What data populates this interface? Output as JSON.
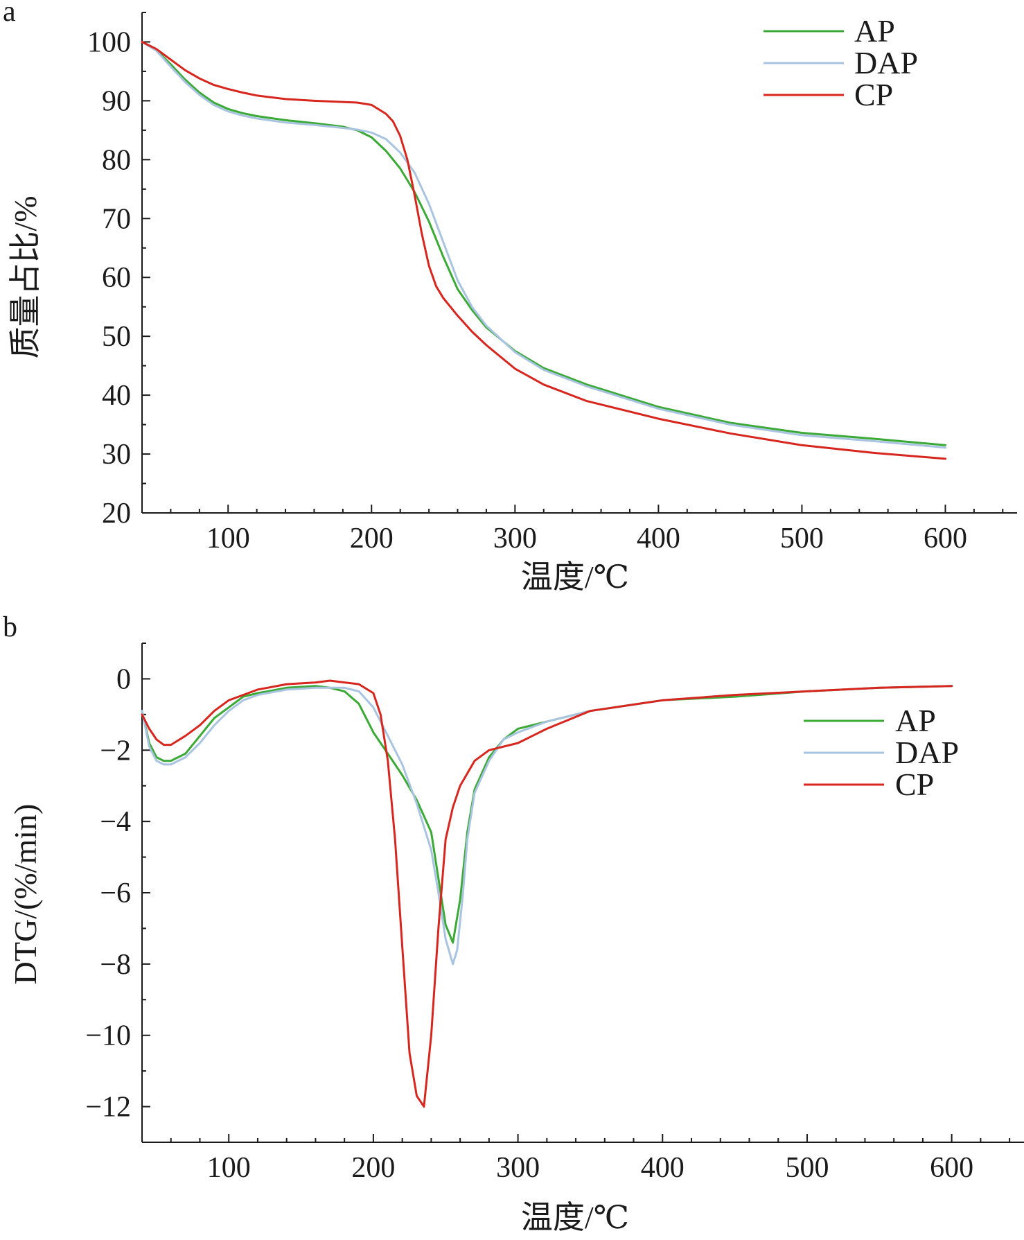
{
  "chart_data": [
    {
      "type": "line",
      "panel_label": "a",
      "xlabel": "温度/℃",
      "ylabel": "质量占比/%",
      "xlim": [
        40,
        650
      ],
      "ylim": [
        20,
        105
      ],
      "x_ticks": [
        100,
        200,
        300,
        400,
        500,
        600
      ],
      "y_ticks": [
        20,
        30,
        40,
        50,
        60,
        70,
        80,
        90,
        100
      ],
      "legend_position": "top-right",
      "series": [
        {
          "name": "AP",
          "color": "#3aa935",
          "x": [
            40,
            50,
            60,
            70,
            80,
            90,
            100,
            110,
            120,
            140,
            160,
            180,
            190,
            200,
            210,
            220,
            230,
            240,
            250,
            260,
            270,
            280,
            300,
            320,
            350,
            400,
            450,
            500,
            550,
            600
          ],
          "y": [
            100,
            98.6,
            96.2,
            93.6,
            91.4,
            89.7,
            88.6,
            87.9,
            87.4,
            86.7,
            86.2,
            85.6,
            85.0,
            83.8,
            81.5,
            78.5,
            74.5,
            69.5,
            63.5,
            58.0,
            54.5,
            51.5,
            47.5,
            44.6,
            41.8,
            38.0,
            35.3,
            33.6,
            32.6,
            31.5
          ]
        },
        {
          "name": "DAP",
          "color": "#a8c4e0",
          "x": [
            40,
            50,
            60,
            70,
            80,
            90,
            100,
            110,
            120,
            140,
            160,
            180,
            190,
            200,
            210,
            220,
            230,
            240,
            250,
            260,
            270,
            280,
            300,
            320,
            350,
            400,
            450,
            500,
            550,
            600
          ],
          "y": [
            100,
            98.5,
            95.8,
            93.2,
            91.0,
            89.3,
            88.2,
            87.5,
            87.0,
            86.3,
            85.9,
            85.4,
            85.1,
            84.6,
            83.5,
            81.2,
            77.8,
            72.5,
            66.0,
            59.5,
            55.0,
            51.8,
            47.3,
            44.3,
            41.5,
            37.7,
            35.0,
            33.2,
            32.2,
            31.1
          ]
        },
        {
          "name": "CP",
          "color": "#d7261e",
          "x": [
            40,
            50,
            60,
            70,
            80,
            90,
            100,
            110,
            120,
            140,
            160,
            180,
            190,
            200,
            210,
            215,
            220,
            225,
            230,
            235,
            240,
            245,
            250,
            260,
            270,
            280,
            300,
            320,
            350,
            400,
            450,
            500,
            550,
            600
          ],
          "y": [
            100,
            98.8,
            97.0,
            95.2,
            93.8,
            92.7,
            92.0,
            91.4,
            90.9,
            90.3,
            90.0,
            89.8,
            89.7,
            89.3,
            87.8,
            86.5,
            84.0,
            80.0,
            74.0,
            67.5,
            62.0,
            58.5,
            56.5,
            53.5,
            50.8,
            48.5,
            44.5,
            41.8,
            39.0,
            36.0,
            33.5,
            31.5,
            30.2,
            29.2
          ]
        }
      ]
    },
    {
      "type": "line",
      "panel_label": "b",
      "xlabel": "温度/℃",
      "ylabel": "DTG/(%/min)",
      "xlim": [
        40,
        650
      ],
      "ylim": [
        -13,
        1
      ],
      "x_ticks": [
        100,
        200,
        300,
        400,
        500,
        600
      ],
      "y_ticks": [
        0,
        -2,
        -4,
        -6,
        -8,
        -10,
        -12
      ],
      "y_tick_labels": [
        "0",
        "−2",
        "−4",
        "−6",
        "−8",
        "−10",
        "−12"
      ],
      "legend_position": "right",
      "series": [
        {
          "name": "AP",
          "color": "#3aa935",
          "x": [
            40,
            45,
            50,
            55,
            60,
            70,
            80,
            90,
            100,
            110,
            120,
            140,
            160,
            170,
            180,
            190,
            200,
            210,
            220,
            230,
            240,
            245,
            250,
            255,
            260,
            265,
            270,
            280,
            290,
            300,
            320,
            350,
            400,
            450,
            500,
            550,
            600
          ],
          "y": [
            -0.9,
            -1.8,
            -2.2,
            -2.3,
            -2.3,
            -2.1,
            -1.6,
            -1.1,
            -0.8,
            -0.5,
            -0.4,
            -0.25,
            -0.2,
            -0.25,
            -0.35,
            -0.7,
            -1.5,
            -2.1,
            -2.7,
            -3.4,
            -4.3,
            -5.6,
            -6.9,
            -7.4,
            -6.2,
            -4.3,
            -3.1,
            -2.2,
            -1.7,
            -1.4,
            -1.2,
            -0.9,
            -0.6,
            -0.5,
            -0.35,
            -0.25,
            -0.2
          ]
        },
        {
          "name": "DAP",
          "color": "#a8c4e0",
          "x": [
            40,
            45,
            50,
            55,
            60,
            70,
            80,
            90,
            100,
            110,
            120,
            140,
            160,
            170,
            180,
            190,
            200,
            210,
            220,
            230,
            240,
            245,
            250,
            255,
            258,
            262,
            265,
            270,
            280,
            290,
            300,
            320,
            350,
            400,
            450,
            500,
            550,
            600
          ],
          "y": [
            -0.9,
            -1.9,
            -2.3,
            -2.4,
            -2.4,
            -2.2,
            -1.8,
            -1.3,
            -0.9,
            -0.6,
            -0.45,
            -0.3,
            -0.25,
            -0.25,
            -0.25,
            -0.35,
            -0.8,
            -1.6,
            -2.4,
            -3.5,
            -4.8,
            -6.0,
            -7.3,
            -8.0,
            -7.6,
            -6.0,
            -4.5,
            -3.2,
            -2.3,
            -1.7,
            -1.5,
            -1.2,
            -0.9,
            -0.6,
            -0.45,
            -0.35,
            -0.25,
            -0.2
          ]
        },
        {
          "name": "CP",
          "color": "#d7261e",
          "x": [
            40,
            45,
            50,
            55,
            60,
            70,
            80,
            90,
            100,
            110,
            120,
            140,
            160,
            170,
            180,
            190,
            200,
            205,
            210,
            215,
            220,
            225,
            230,
            235,
            240,
            245,
            250,
            255,
            260,
            270,
            280,
            300,
            320,
            350,
            400,
            450,
            500,
            550,
            600
          ],
          "y": [
            -1.0,
            -1.4,
            -1.7,
            -1.85,
            -1.85,
            -1.6,
            -1.3,
            -0.9,
            -0.6,
            -0.45,
            -0.3,
            -0.15,
            -0.1,
            -0.05,
            -0.1,
            -0.15,
            -0.4,
            -1.0,
            -2.3,
            -4.5,
            -7.5,
            -10.5,
            -11.7,
            -12.0,
            -10.0,
            -7.0,
            -4.5,
            -3.6,
            -3.0,
            -2.3,
            -2.0,
            -1.8,
            -1.4,
            -0.9,
            -0.6,
            -0.45,
            -0.35,
            -0.25,
            -0.2
          ]
        }
      ]
    }
  ]
}
